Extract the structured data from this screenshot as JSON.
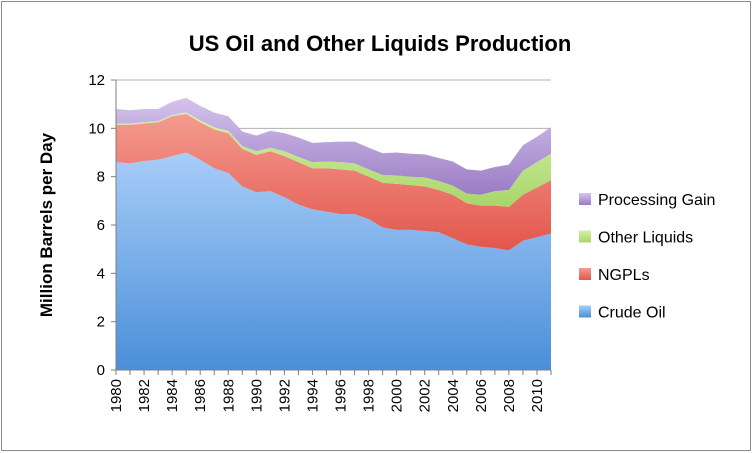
{
  "chart_data": {
    "type": "area",
    "stacked": true,
    "title": "US Oil and Other Liquids Production",
    "ylabel": "Million Barrels per Day",
    "xlabel": "",
    "ylim": [
      0,
      12
    ],
    "yticks": [
      0,
      2,
      4,
      6,
      8,
      10,
      12
    ],
    "xticks": [
      "1980",
      "1982",
      "1984",
      "1986",
      "1988",
      "1990",
      "1992",
      "1994",
      "1996",
      "1998",
      "2000",
      "2002",
      "2004",
      "2006",
      "2008",
      "2010"
    ],
    "x": [
      1980,
      1981,
      1982,
      1983,
      1984,
      1985,
      1986,
      1987,
      1988,
      1989,
      1990,
      1991,
      1992,
      1993,
      1994,
      1995,
      1996,
      1997,
      1998,
      1999,
      2000,
      2001,
      2002,
      2003,
      2004,
      2005,
      2006,
      2007,
      2008,
      2009,
      2010,
      2011
    ],
    "grid": "horizontal",
    "legend_position": "right",
    "series": [
      {
        "name": "Crude Oil",
        "color": "#5b9bd5",
        "values": [
          8.6,
          8.55,
          8.65,
          8.7,
          8.85,
          9.0,
          8.7,
          8.35,
          8.15,
          7.6,
          7.35,
          7.4,
          7.15,
          6.85,
          6.65,
          6.55,
          6.45,
          6.45,
          6.25,
          5.9,
          5.8,
          5.8,
          5.75,
          5.7,
          5.45,
          5.2,
          5.1,
          5.05,
          4.95,
          5.35,
          5.5,
          5.65
        ]
      },
      {
        "name": "NGPLs",
        "color": "#f07a6e",
        "values": [
          1.55,
          1.6,
          1.55,
          1.55,
          1.65,
          1.6,
          1.55,
          1.6,
          1.65,
          1.55,
          1.55,
          1.65,
          1.7,
          1.75,
          1.7,
          1.8,
          1.85,
          1.8,
          1.75,
          1.85,
          1.9,
          1.85,
          1.85,
          1.75,
          1.8,
          1.7,
          1.7,
          1.75,
          1.8,
          1.9,
          2.05,
          2.2
        ]
      },
      {
        "name": "Other Liquids",
        "color": "#c2e389",
        "values": [
          0.05,
          0.05,
          0.05,
          0.05,
          0.05,
          0.06,
          0.08,
          0.1,
          0.1,
          0.12,
          0.15,
          0.15,
          0.2,
          0.22,
          0.25,
          0.28,
          0.3,
          0.3,
          0.3,
          0.32,
          0.35,
          0.35,
          0.37,
          0.37,
          0.38,
          0.4,
          0.45,
          0.6,
          0.7,
          1.0,
          1.05,
          1.1
        ]
      },
      {
        "name": "Processing Gain",
        "color": "#b69ad6",
        "values": [
          0.6,
          0.55,
          0.55,
          0.5,
          0.55,
          0.6,
          0.6,
          0.6,
          0.6,
          0.6,
          0.65,
          0.7,
          0.75,
          0.8,
          0.8,
          0.8,
          0.85,
          0.9,
          0.9,
          0.9,
          0.95,
          0.95,
          0.95,
          0.95,
          1.0,
          1.0,
          1.0,
          1.0,
          1.05,
          1.05,
          1.05,
          1.1
        ]
      }
    ]
  }
}
